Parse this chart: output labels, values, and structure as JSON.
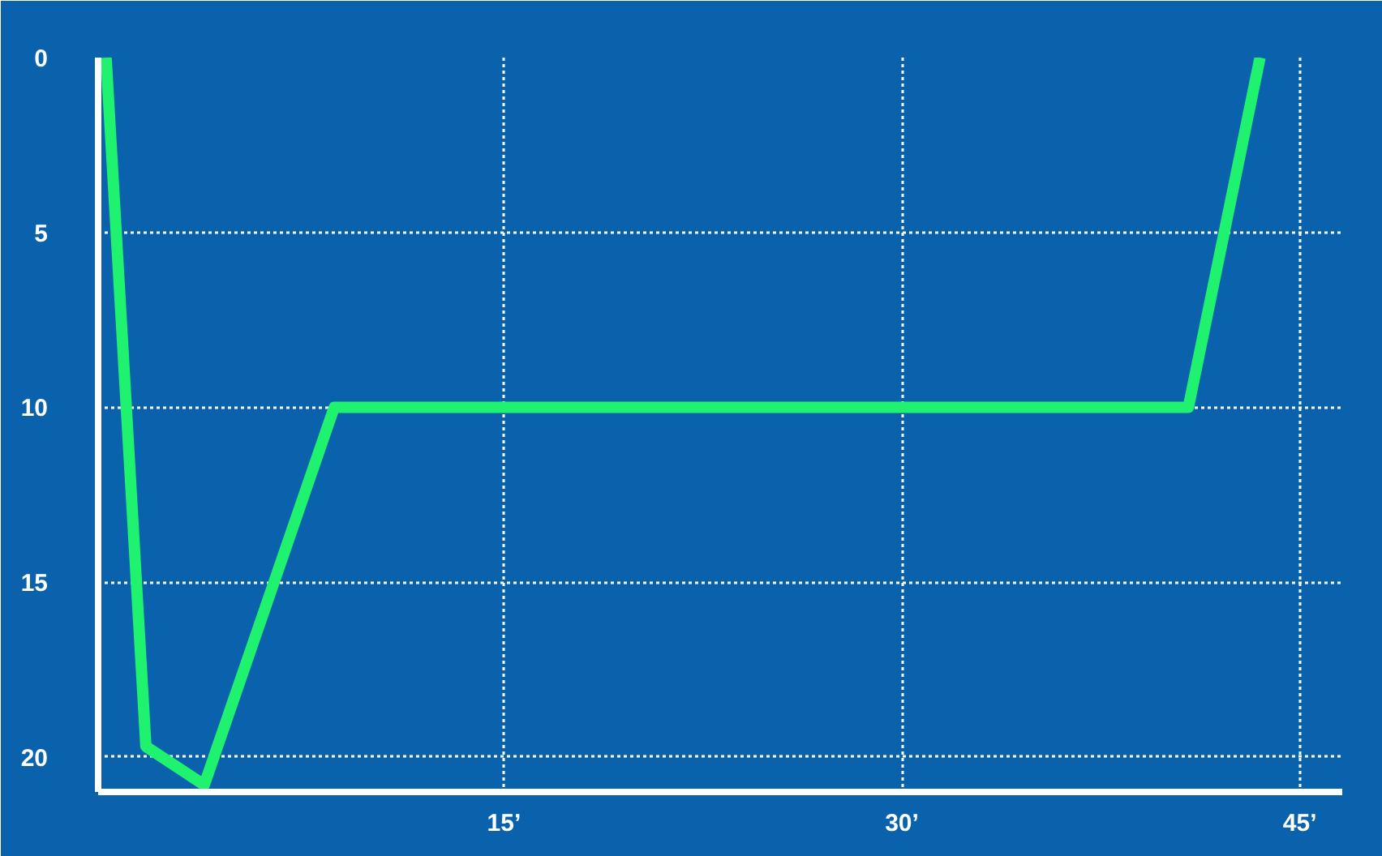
{
  "chart_data": {
    "type": "line",
    "x": [
      0,
      1.5,
      3.7,
      8.6,
      40.8,
      43.5
    ],
    "series": [
      {
        "color": "#1ef26e",
        "values": [
          0,
          19.7,
          20.8,
          10,
          10,
          0
        ]
      }
    ],
    "xlim": [
      -0.3,
      46.6
    ],
    "ylim": [
      21,
      0
    ],
    "xticks": [
      {
        "value": 15,
        "label": "15’"
      },
      {
        "value": 30,
        "label": "30’"
      },
      {
        "value": 45,
        "label": "45’"
      }
    ],
    "yticks": [
      0,
      5,
      10,
      15,
      20
    ],
    "grid": true,
    "marker": "none",
    "line_style": "solid"
  }
}
